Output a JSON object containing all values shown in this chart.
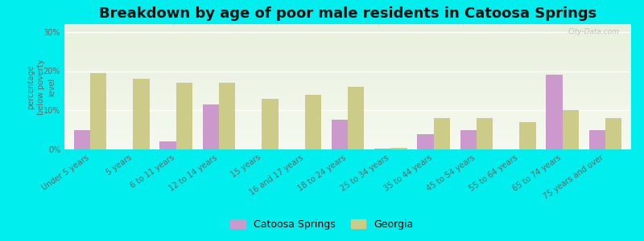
{
  "title": "Breakdown by age of poor male residents in Catoosa Springs",
  "categories": [
    "Under 5 years",
    "5 years",
    "6 to 11 years",
    "12 to 14 years",
    "15 years",
    "16 and 17 years",
    "18 to 24 years",
    "25 to 34 years",
    "35 to 44 years",
    "45 to 54 years",
    "55 to 64 years",
    "65 to 74 years",
    "75 years and over"
  ],
  "catoosa_values": [
    5.0,
    0.0,
    2.0,
    11.5,
    0.0,
    0.0,
    7.5,
    0.2,
    4.0,
    5.0,
    0.0,
    19.0,
    5.0
  ],
  "georgia_values": [
    19.5,
    18.0,
    17.0,
    17.0,
    13.0,
    14.0,
    16.0,
    0.5,
    8.0,
    8.0,
    7.0,
    10.0,
    8.0
  ],
  "catoosa_color": "#cc99cc",
  "georgia_color": "#cccc88",
  "background_color": "#00eeee",
  "ylabel": "percentage\nbelow poverty\nlevel",
  "ylim": [
    0,
    32
  ],
  "yticks": [
    0,
    10,
    20,
    30
  ],
  "ytick_labels": [
    "0%",
    "10%",
    "20%",
    "30%"
  ],
  "title_fontsize": 13,
  "axis_label_fontsize": 7,
  "tick_fontsize": 7,
  "legend_catoosa": "Catoosa Springs",
  "legend_georgia": "Georgia",
  "bar_width": 0.38,
  "watermark": "City-Data.com"
}
